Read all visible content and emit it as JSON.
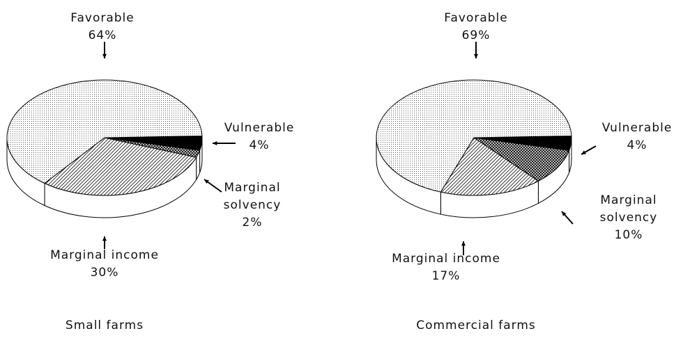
{
  "chart_data": [
    {
      "type": "pie",
      "title": "Small farms",
      "categories": [
        "Vulnerable",
        "Marginal solvency",
        "Marginal income",
        "Favorable"
      ],
      "values": [
        4,
        2,
        30,
        64
      ],
      "value_labels": [
        "4%",
        "2%",
        "30%",
        "64%"
      ],
      "patterns": [
        "solid",
        "crosshatch",
        "hatch",
        "dots"
      ]
    },
    {
      "type": "pie",
      "title": "Commercial farms",
      "categories": [
        "Vulnerable",
        "Marginal solvency",
        "Marginal income",
        "Favorable"
      ],
      "values": [
        4,
        10,
        17,
        69
      ],
      "value_labels": [
        "4%",
        "10%",
        "17%",
        "69%"
      ],
      "patterns": [
        "solid",
        "crosshatch",
        "hatch",
        "dots"
      ]
    }
  ]
}
